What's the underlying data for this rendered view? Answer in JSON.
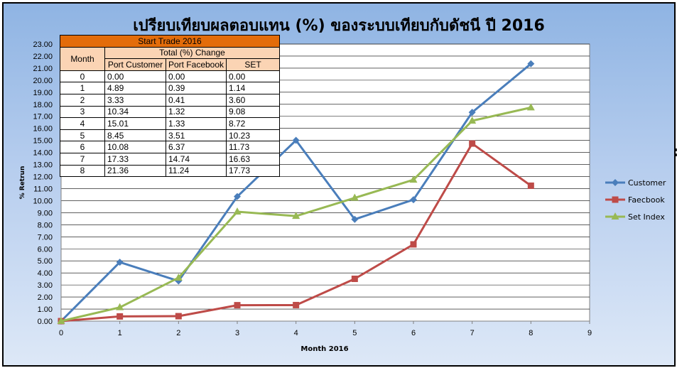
{
  "chart_data": {
    "type": "line",
    "title": "เปรียบเทียบผลตอบแทน (%) ของระบบเทียบกับดัชนี ปี 2016",
    "xlabel": "Month 2016",
    "ylabel": "% Retrun",
    "xlim": [
      0,
      9
    ],
    "ylim": [
      0,
      23
    ],
    "x_ticks": [
      "0",
      "1",
      "2",
      "3",
      "4",
      "5",
      "6",
      "7",
      "8",
      "9"
    ],
    "y_ticks": [
      "0.00",
      "1.00",
      "2.00",
      "3.00",
      "4.00",
      "5.00",
      "6.00",
      "7.00",
      "8.00",
      "9.00",
      "10.00",
      "11.00",
      "12.00",
      "13.00",
      "14.00",
      "15.00",
      "16.00",
      "17.00",
      "18.00",
      "19.00",
      "20.00",
      "21.00",
      "22.00",
      "23.00"
    ],
    "grid": true,
    "legend_position": "right",
    "x": [
      0,
      1,
      2,
      3,
      4,
      5,
      6,
      7,
      8
    ],
    "series": [
      {
        "name": "Customer",
        "color": "#4a7ebb",
        "marker": "diamond",
        "values": [
          0.0,
          4.89,
          3.33,
          10.34,
          15.01,
          8.45,
          10.08,
          17.33,
          21.36
        ]
      },
      {
        "name": "Faecbook",
        "color": "#be4b48",
        "marker": "square",
        "values": [
          0.0,
          0.39,
          0.41,
          1.32,
          1.33,
          3.51,
          6.37,
          14.74,
          11.24
        ]
      },
      {
        "name": "Set Index",
        "color": "#98b954",
        "marker": "triangle",
        "values": [
          0.0,
          1.14,
          3.6,
          9.08,
          8.72,
          10.23,
          11.73,
          16.63,
          17.73
        ]
      }
    ]
  },
  "table": {
    "title": "Start Trade 2016",
    "month_header": "Month",
    "group_header": "Total (%) Change",
    "columns": [
      "Port Customer",
      "Port Facebook",
      "SET"
    ],
    "rows": [
      [
        "0",
        "0.00",
        "0.00",
        "0.00"
      ],
      [
        "1",
        "4.89",
        "0.39",
        "1.14"
      ],
      [
        "2",
        "3.33",
        "0.41",
        "3.60"
      ],
      [
        "3",
        "10.34",
        "1.32",
        "9.08"
      ],
      [
        "4",
        "15.01",
        "1.33",
        "8.72"
      ],
      [
        "5",
        "8.45",
        "3.51",
        "10.23"
      ],
      [
        "6",
        "10.08",
        "6.37",
        "11.73"
      ],
      [
        "7",
        "17.33",
        "14.74",
        "16.63"
      ],
      [
        "8",
        "21.36",
        "11.24",
        "17.73"
      ]
    ]
  },
  "edge_mark": ":"
}
